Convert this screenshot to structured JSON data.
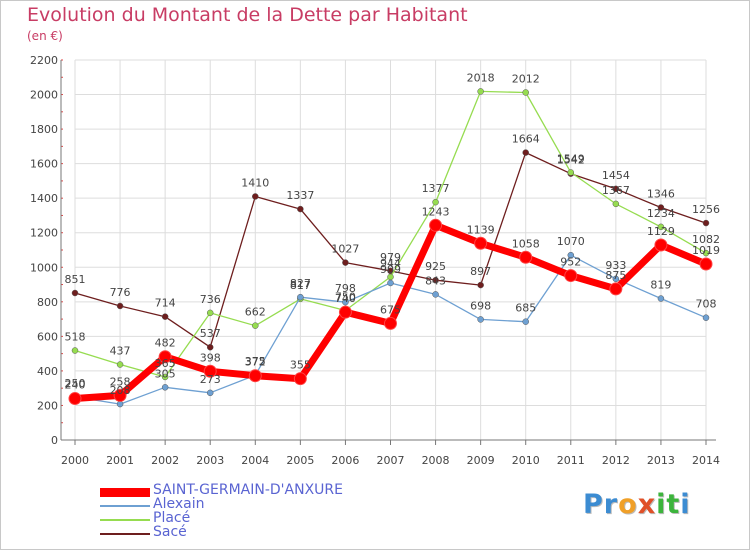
{
  "header": {
    "title": "Evolution du Montant de la Dette par Habitant",
    "unit": "(en €)"
  },
  "logo": {
    "letters": [
      "P",
      "r",
      "o",
      "x",
      "i",
      "t",
      "i"
    ],
    "colors": [
      "#3c8cd2",
      "#3c8cd2",
      "#f0a028",
      "#e05028",
      "#3cb43c",
      "#3cb43c",
      "#3c8cd2"
    ]
  },
  "chart_data": {
    "type": "line",
    "title": "Evolution du Montant de la Dette par Habitant",
    "ylabel": "(en €)",
    "xlabel": "",
    "x": [
      "2000",
      "2001",
      "2002",
      "2003",
      "2004",
      "2005",
      "2006",
      "2007",
      "2008",
      "2009",
      "2010",
      "2011",
      "2012",
      "2013",
      "2014"
    ],
    "ylim": [
      0,
      2200
    ],
    "yticks": [
      0,
      200,
      400,
      600,
      800,
      1000,
      1200,
      1400,
      1600,
      1800,
      2000,
      2200
    ],
    "grid": true,
    "legend": "bottom-left",
    "series": [
      {
        "name": "SAINT-GERMAIN-D'ANXURE",
        "color": "#ff0000",
        "values": [
          240,
          258,
          482,
          398,
          372,
          355,
          740,
          675,
          1243,
          1139,
          1058,
          952,
          875,
          1129,
          1019
        ]
      },
      {
        "name": "Alexain",
        "color": "#6ea0d2",
        "values": [
          250,
          208,
          305,
          273,
          375,
          827,
          798,
          909,
          843,
          698,
          685,
          1070,
          933,
          819,
          708
        ]
      },
      {
        "name": "Placé",
        "color": "#96dc50",
        "values": [
          518,
          437,
          365,
          736,
          662,
          817,
          750,
          944,
          1377,
          2018,
          2012,
          1549,
          1367,
          1234,
          1082
        ]
      },
      {
        "name": "Sacé",
        "color": "#6e1e1e",
        "values": [
          851,
          776,
          714,
          537,
          1410,
          1337,
          1027,
          979,
          925,
          897,
          1664,
          1542,
          1454,
          1346,
          1256
        ]
      }
    ]
  }
}
